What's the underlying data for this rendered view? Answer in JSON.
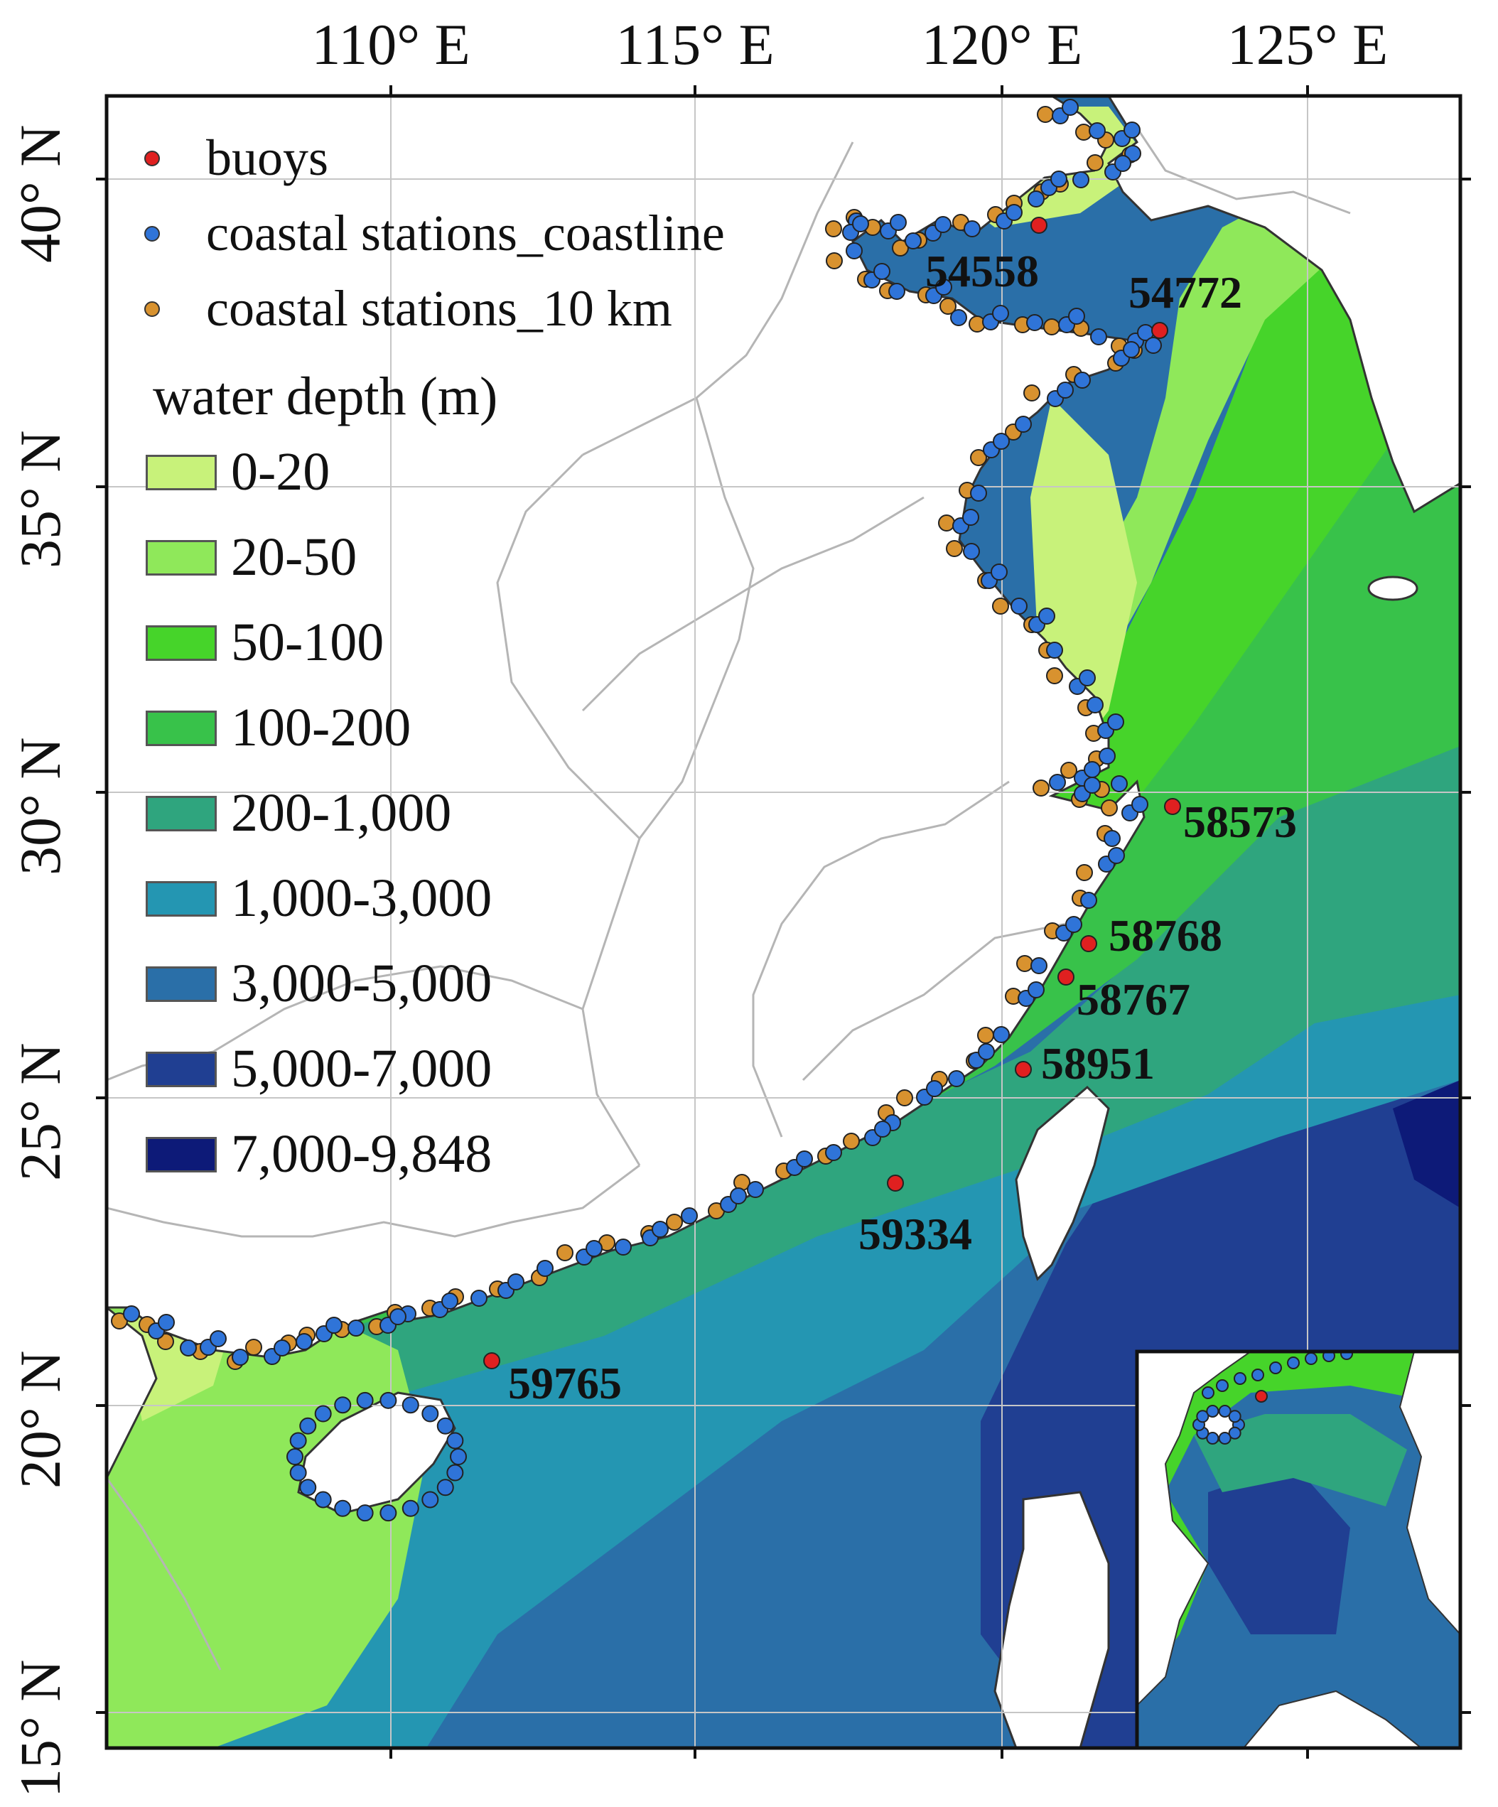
{
  "map": {
    "lon_ticks": [
      "110° E",
      "115° E",
      "120° E",
      "125° E"
    ],
    "lat_ticks": [
      "40° N",
      "35° N",
      "30° N",
      "25° N",
      "20° N",
      "15° N"
    ]
  },
  "legend": {
    "markers": [
      {
        "label": "buoys",
        "color": "#e02020"
      },
      {
        "label": "coastal stations_coastline",
        "color": "#2f74d8"
      },
      {
        "label": "coastal stations_10 km",
        "color": "#d8922f"
      }
    ],
    "depth_title": "water depth (m)",
    "depth_classes": [
      {
        "label": "0-20",
        "color": "#c8f27a"
      },
      {
        "label": "20-50",
        "color": "#8fe85a"
      },
      {
        "label": "50-100",
        "color": "#46d42a"
      },
      {
        "label": "100-200",
        "color": "#38c24a"
      },
      {
        "label": "200-1,000",
        "color": "#2fa57e"
      },
      {
        "label": "1,000-3,000",
        "color": "#2496b2"
      },
      {
        "label": "3,000-5,000",
        "color": "#2a6fa8"
      },
      {
        "label": "5,000-7,000",
        "color": "#203f92"
      },
      {
        "label": "7,000-9,848",
        "color": "#0d1a78"
      }
    ]
  },
  "buoys": [
    {
      "id": "54558"
    },
    {
      "id": "54772"
    },
    {
      "id": "58573"
    },
    {
      "id": "58768"
    },
    {
      "id": "58767"
    },
    {
      "id": "58951"
    },
    {
      "id": "59334"
    },
    {
      "id": "59765"
    }
  ]
}
